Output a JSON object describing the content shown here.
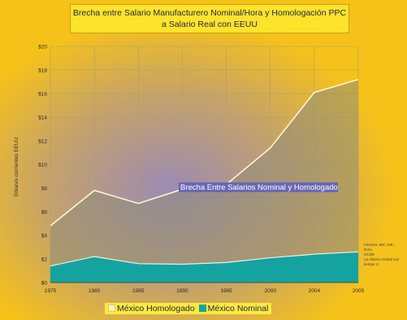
{
  "title_line1": "Brecha entre Salario Manufacturero Nominal/Hora y Homologación PPC",
  "title_line2": "a Salario Real con EEUU",
  "ylabel": "Dólares corrientes EEUU",
  "annotation": "Brecha Entre Salarios Nominal y Homologado",
  "source_line1": "Fuentes: BM, OIE, EUU,",
  "source_line2": "OCDE",
  "source_line3": "La Alianza Global sus",
  "source_line4": "tiempo U",
  "legend": [
    {
      "label": "México Homologado",
      "color": "#fdf6c0"
    },
    {
      "label": "México Nominal",
      "color": "#15a3a0"
    }
  ],
  "chart_data": {
    "type": "area",
    "title": "Brecha entre Salario Manufacturero Nominal/Hora y Homologación PPC a Salario Real con EEUU",
    "ylabel": "Dólares corrientes EEUU",
    "x": [
      "1975",
      "1980",
      "1985",
      "1990",
      "1995",
      "2000",
      "2004",
      "2005"
    ],
    "yticks": [
      "$0",
      "$2",
      "$4",
      "$6",
      "$8",
      "$10",
      "$12",
      "$14",
      "$16",
      "$18",
      "$20"
    ],
    "ylim": [
      0,
      20
    ],
    "grid": true,
    "series": [
      {
        "name": "México Homologado",
        "color": "#8a8a82",
        "values": [
          4.8,
          7.8,
          6.7,
          7.9,
          8.3,
          11.4,
          16.1,
          17.2
        ]
      },
      {
        "name": "México Nominal",
        "color": "#15a3a0",
        "values": [
          1.4,
          2.2,
          1.6,
          1.55,
          1.7,
          2.1,
          2.4,
          2.6
        ]
      }
    ]
  }
}
